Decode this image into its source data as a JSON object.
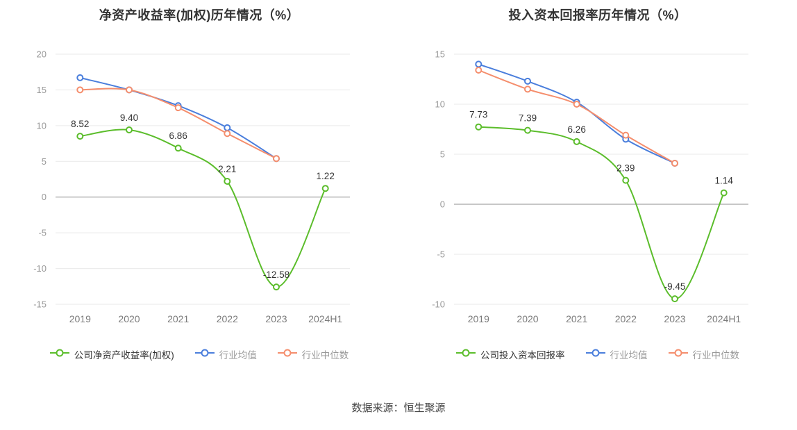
{
  "source_text": "数据来源：恒生聚源",
  "chart_data": [
    {
      "type": "line",
      "title": "净资产收益率(加权)历年情况（%）",
      "categories": [
        "2019",
        "2020",
        "2021",
        "2022",
        "2023",
        "2024H1"
      ],
      "ylim": [
        -15,
        20
      ],
      "ytick_step": 5,
      "grid": true,
      "legend_position": "bottom",
      "series": [
        {
          "name": "公司净资产收益率(加权)",
          "color": "#5bbd2b",
          "values": [
            8.52,
            9.4,
            6.86,
            2.21,
            -12.58,
            1.22
          ],
          "point_labels": [
            "8.52",
            "9.40",
            "6.86",
            "2.21",
            "-12.58",
            "1.22"
          ]
        },
        {
          "name": "行业均值",
          "color": "#4a7edc",
          "values": [
            16.7,
            15.0,
            12.8,
            9.7,
            5.4,
            null
          ]
        },
        {
          "name": "行业中位数",
          "color": "#f58e6d",
          "values": [
            15.0,
            15.0,
            12.5,
            8.9,
            5.4,
            null
          ]
        }
      ]
    },
    {
      "type": "line",
      "title": "投入资本回报率历年情况（%）",
      "categories": [
        "2019",
        "2020",
        "2021",
        "2022",
        "2023",
        "2024H1"
      ],
      "ylim": [
        -10,
        15
      ],
      "ytick_step": 5,
      "grid": true,
      "legend_position": "bottom",
      "series": [
        {
          "name": "公司投入资本回报率",
          "color": "#5bbd2b",
          "values": [
            7.73,
            7.39,
            6.26,
            2.39,
            -9.45,
            1.14
          ],
          "point_labels": [
            "7.73",
            "7.39",
            "6.26",
            "2.39",
            "-9.45",
            "1.14"
          ]
        },
        {
          "name": "行业均值",
          "color": "#4a7edc",
          "values": [
            14.0,
            12.3,
            10.2,
            6.5,
            4.1,
            null
          ]
        },
        {
          "name": "行业中位数",
          "color": "#f58e6d",
          "values": [
            13.4,
            11.5,
            10.0,
            6.9,
            4.1,
            null
          ]
        }
      ]
    }
  ]
}
